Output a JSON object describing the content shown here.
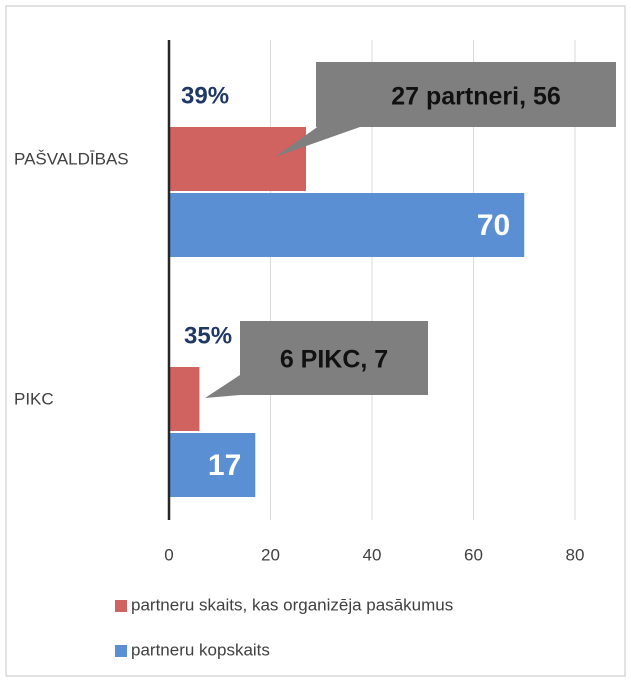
{
  "chart_data": {
    "type": "barh",
    "categories": [
      "PAŠVALDĪBAS",
      "PIKC"
    ],
    "series": [
      {
        "name": "partneru skaits, kas organizēja pasākumus",
        "color": "#d0625f",
        "values": [
          27,
          6
        ]
      },
      {
        "name": "partneru kopskaits",
        "color": "#5b8fd3",
        "values": [
          70,
          17
        ]
      }
    ],
    "xlim": [
      0,
      88
    ],
    "xticks": [
      0,
      20,
      40,
      60,
      80
    ],
    "grid": true,
    "legend": "bottom",
    "annotations": [
      {
        "text": "27 partneri, 56"
      },
      {
        "text": "6 PIKC, 7"
      },
      {
        "text": "39%"
      },
      {
        "text": "35%"
      }
    ]
  }
}
